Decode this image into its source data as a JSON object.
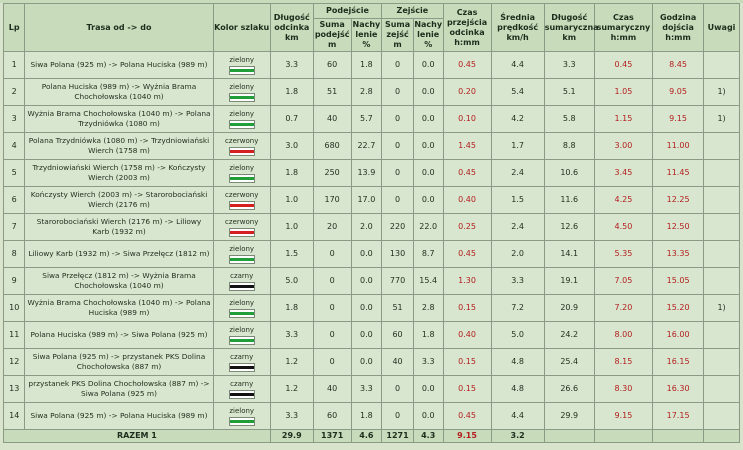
{
  "headers": {
    "lp": "Lp",
    "trasa": "Trasa od -> do",
    "kolor": "Kolor szlaku",
    "dlugosc": "Długość odcinka km",
    "podejscie": "Podejście",
    "suma_podejsc": "Suma podejść m",
    "nachylenie": "Nachy lenie %",
    "zejscie": "Zejście",
    "suma_zejsc": "Suma zejść m",
    "czas": "Czas przejścia odcinka h:mm",
    "predkosc": "Średnia prędkość km/h",
    "dlugosc_sum": "Długość sumaryczna km",
    "czas_sum": "Czas sumaryczny h:mm",
    "godzina": "Godzina dojścia h:mm",
    "uwagi": "Uwagi"
  },
  "trail_colors": {
    "zielony": "#1f9e3a",
    "czerwony": "#d42020",
    "czarny": "#111111"
  },
  "rows": [
    {
      "lp": "1",
      "trasa": "Siwa Polana (925 m) -> Polana Huciska (989 m)",
      "kolor": "zielony",
      "dl": "3.3",
      "pod": "60",
      "nach1": "1.8",
      "zej": "0",
      "nach2": "0.0",
      "czas": "0.45",
      "pred": "4.4",
      "dlsum": "3.3",
      "czassum": "0.45",
      "godz": "8.45",
      "uwagi": ""
    },
    {
      "lp": "2",
      "trasa": "Polana Huciska (989 m) -> Wyżnia Brama Chochołowska (1040 m)",
      "kolor": "zielony",
      "dl": "1.8",
      "pod": "51",
      "nach1": "2.8",
      "zej": "0",
      "nach2": "0.0",
      "czas": "0.20",
      "pred": "5.4",
      "dlsum": "5.1",
      "czassum": "1.05",
      "godz": "9.05",
      "uwagi": "1)"
    },
    {
      "lp": "3",
      "trasa": "Wyżnia Brama Chochołowska (1040 m) -> Polana Trzydniówka (1080 m)",
      "kolor": "zielony",
      "dl": "0.7",
      "pod": "40",
      "nach1": "5.7",
      "zej": "0",
      "nach2": "0.0",
      "czas": "0.10",
      "pred": "4.2",
      "dlsum": "5.8",
      "czassum": "1.15",
      "godz": "9.15",
      "uwagi": "1)"
    },
    {
      "lp": "4",
      "trasa": "Polana Trzydniówka (1080 m) -> Trzydniowiański Wierch (1758 m)",
      "kolor": "czerwony",
      "dl": "3.0",
      "pod": "680",
      "nach1": "22.7",
      "zej": "0",
      "nach2": "0.0",
      "czas": "1.45",
      "pred": "1.7",
      "dlsum": "8.8",
      "czassum": "3.00",
      "godz": "11.00",
      "uwagi": ""
    },
    {
      "lp": "5",
      "trasa": "Trzydniowiański Wierch (1758 m) -> Kończysty Wierch (2003 m)",
      "kolor": "zielony",
      "dl": "1.8",
      "pod": "250",
      "nach1": "13.9",
      "zej": "0",
      "nach2": "0.0",
      "czas": "0.45",
      "pred": "2.4",
      "dlsum": "10.6",
      "czassum": "3.45",
      "godz": "11.45",
      "uwagi": ""
    },
    {
      "lp": "6",
      "trasa": "Kończysty Wierch (2003 m) -> Starorobociański Wierch (2176 m)",
      "kolor": "czerwony",
      "dl": "1.0",
      "pod": "170",
      "nach1": "17.0",
      "zej": "0",
      "nach2": "0.0",
      "czas": "0.40",
      "pred": "1.5",
      "dlsum": "11.6",
      "czassum": "4.25",
      "godz": "12.25",
      "uwagi": ""
    },
    {
      "lp": "7",
      "trasa": "Starorobociański Wierch (2176 m) -> Liliowy Karb (1932 m)",
      "kolor": "czerwony",
      "dl": "1.0",
      "pod": "20",
      "nach1": "2.0",
      "zej": "220",
      "nach2": "22.0",
      "czas": "0.25",
      "pred": "2.4",
      "dlsum": "12.6",
      "czassum": "4.50",
      "godz": "12.50",
      "uwagi": ""
    },
    {
      "lp": "8",
      "trasa": "Liliowy Karb (1932 m) -> Siwa Przełęcz (1812 m)",
      "kolor": "zielony",
      "dl": "1.5",
      "pod": "0",
      "nach1": "0.0",
      "zej": "130",
      "nach2": "8.7",
      "czas": "0.45",
      "pred": "2.0",
      "dlsum": "14.1",
      "czassum": "5.35",
      "godz": "13.35",
      "uwagi": ""
    },
    {
      "lp": "9",
      "trasa": "Siwa Przełęcz (1812 m) -> Wyżnia Brama Chochołowska (1040 m)",
      "kolor": "czarny",
      "dl": "5.0",
      "pod": "0",
      "nach1": "0.0",
      "zej": "770",
      "nach2": "15.4",
      "czas": "1.30",
      "pred": "3.3",
      "dlsum": "19.1",
      "czassum": "7.05",
      "godz": "15.05",
      "uwagi": ""
    },
    {
      "lp": "10",
      "trasa": "Wyżnia Brama Chochołowska (1040 m) -> Polana Huciska (989 m)",
      "kolor": "zielony",
      "dl": "1.8",
      "pod": "0",
      "nach1": "0.0",
      "zej": "51",
      "nach2": "2.8",
      "czas": "0.15",
      "pred": "7.2",
      "dlsum": "20.9",
      "czassum": "7.20",
      "godz": "15.20",
      "uwagi": "1)"
    },
    {
      "lp": "11",
      "trasa": "Polana Huciska (989 m) -> Siwa Polana (925 m)",
      "kolor": "zielony",
      "dl": "3.3",
      "pod": "0",
      "nach1": "0.0",
      "zej": "60",
      "nach2": "1.8",
      "czas": "0.40",
      "pred": "5.0",
      "dlsum": "24.2",
      "czassum": "8.00",
      "godz": "16.00",
      "uwagi": ""
    },
    {
      "lp": "12",
      "trasa": "Siwa Polana (925 m) -> przystanek PKS Dolina Chochołowska (887 m)",
      "kolor": "czarny",
      "dl": "1.2",
      "pod": "0",
      "nach1": "0.0",
      "zej": "40",
      "nach2": "3.3",
      "czas": "0.15",
      "pred": "4.8",
      "dlsum": "25.4",
      "czassum": "8.15",
      "godz": "16.15",
      "uwagi": ""
    },
    {
      "lp": "13",
      "trasa": "przystanek PKS Dolina Chochołowska (887 m) -> Siwa Polana (925 m)",
      "kolor": "czarny",
      "dl": "1.2",
      "pod": "40",
      "nach1": "3.3",
      "zej": "0",
      "nach2": "0.0",
      "czas": "0.15",
      "pred": "4.8",
      "dlsum": "26.6",
      "czassum": "8.30",
      "godz": "16.30",
      "uwagi": ""
    },
    {
      "lp": "14",
      "trasa": "Siwa Polana (925 m) -> Polana Huciska (989 m)",
      "kolor": "zielony",
      "dl": "3.3",
      "pod": "60",
      "nach1": "1.8",
      "zej": "0",
      "nach2": "0.0",
      "czas": "0.45",
      "pred": "4.4",
      "dlsum": "29.9",
      "czassum": "9.15",
      "godz": "17.15",
      "uwagi": ""
    }
  ],
  "total": {
    "label": "RAZEM 1",
    "dl": "29.9",
    "pod": "1371",
    "nach1": "4.6",
    "zej": "1271",
    "nach2": "4.3",
    "czas": "9.15",
    "pred": "3.2"
  }
}
